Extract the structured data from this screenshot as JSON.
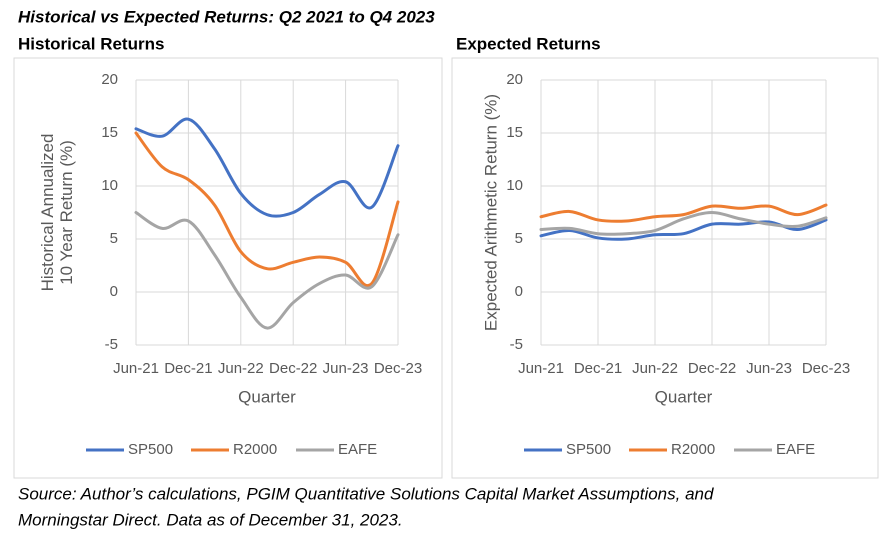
{
  "title": "Historical vs Expected Returns: Q2 2021 to Q4 2023",
  "source": [
    "Source: Author’s calculations, PGIM Quantitative Solutions Capital Market Assumptions, and",
    "Morningstar Direct.  Data as of December 31, 2023."
  ],
  "chart_data": [
    {
      "type": "line",
      "title": "Historical Returns",
      "x_label": "Quarter",
      "y_label": [
        "Historical Annualized",
        "10 Year Return (%)"
      ],
      "categories": [
        "Jun-21",
        null,
        "Dec-21",
        null,
        "Jun-22",
        null,
        "Dec-22",
        null,
        "Jun-23",
        null,
        "Dec-23"
      ],
      "series": [
        {
          "name": "SP500",
          "color": "#4472c4",
          "values": [
            15.4,
            14.7,
            16.3,
            13.5,
            9.3,
            7.3,
            7.5,
            9.2,
            10.4,
            8.0,
            13.8
          ]
        },
        {
          "name": "R2000",
          "color": "#ed7d31",
          "values": [
            15.0,
            11.8,
            10.6,
            8.2,
            3.8,
            2.2,
            2.8,
            3.3,
            2.8,
            0.8,
            8.5
          ]
        },
        {
          "name": "EAFE",
          "color": "#a5a5a5",
          "values": [
            7.5,
            6.0,
            6.7,
            3.5,
            -0.5,
            -3.4,
            -1.0,
            0.8,
            1.6,
            0.5,
            5.4
          ]
        }
      ],
      "ylim": [
        -5,
        20
      ],
      "yticks": [
        -5,
        0,
        5,
        10,
        15,
        20
      ],
      "grid": true,
      "legend": "bottom"
    },
    {
      "type": "line",
      "title": "Expected Returns",
      "x_label": "Quarter",
      "y_label": [
        "Expected Arithmetic Return (%)"
      ],
      "categories": [
        "Jun-21",
        null,
        "Dec-21",
        null,
        "Jun-22",
        null,
        "Dec-22",
        null,
        "Jun-23",
        null,
        "Dec-23"
      ],
      "series": [
        {
          "name": "SP500",
          "color": "#4472c4",
          "values": [
            5.3,
            5.8,
            5.1,
            5.0,
            5.4,
            5.5,
            6.4,
            6.4,
            6.6,
            5.9,
            6.8
          ]
        },
        {
          "name": "R2000",
          "color": "#ed7d31",
          "values": [
            7.1,
            7.6,
            6.8,
            6.7,
            7.1,
            7.3,
            8.1,
            7.9,
            8.1,
            7.3,
            8.2
          ]
        },
        {
          "name": "EAFE",
          "color": "#a5a5a5",
          "values": [
            5.9,
            6.0,
            5.5,
            5.5,
            5.8,
            6.9,
            7.5,
            6.9,
            6.4,
            6.2,
            7.0
          ]
        }
      ],
      "ylim": [
        -5,
        20
      ],
      "yticks": [
        -5,
        0,
        5,
        10,
        15,
        20
      ],
      "grid": true,
      "legend": "bottom"
    }
  ]
}
